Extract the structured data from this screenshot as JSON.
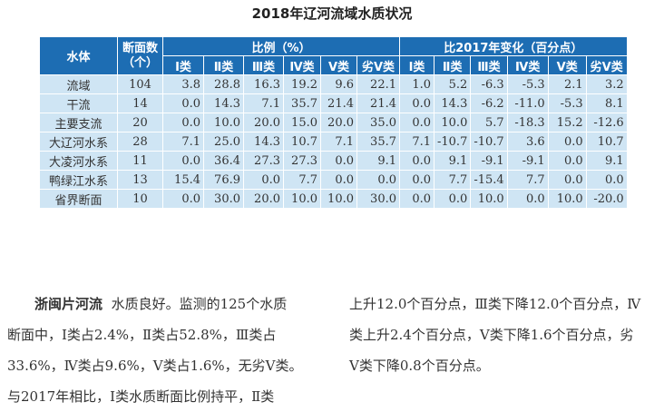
{
  "title": "2018年辽河流域水质状况",
  "table": {
    "col_water": "水体",
    "col_count": "断面数（个）",
    "group_ratio": "比例（%）",
    "group_change": "比2017年变化（百分点）",
    "classes": [
      "Ⅰ类",
      "Ⅱ类",
      "Ⅲ类",
      "Ⅳ类",
      "Ⅴ类",
      "劣Ⅴ类"
    ],
    "rows": [
      {
        "name": "流域",
        "count": "104",
        "ratio": [
          "3.8",
          "28.8",
          "16.3",
          "19.2",
          "9.6",
          "22.1"
        ],
        "change": [
          "1.0",
          "5.2",
          "-6.3",
          "-5.3",
          "2.1",
          "3.2"
        ]
      },
      {
        "name": "干流",
        "count": "14",
        "ratio": [
          "0.0",
          "14.3",
          "7.1",
          "35.7",
          "21.4",
          "21.4"
        ],
        "change": [
          "0.0",
          "14.3",
          "-6.2",
          "-11.0",
          "-5.3",
          "8.1"
        ]
      },
      {
        "name": "主要支流",
        "count": "20",
        "ratio": [
          "0.0",
          "10.0",
          "20.0",
          "15.0",
          "20.0",
          "35.0"
        ],
        "change": [
          "0.0",
          "10.0",
          "5.7",
          "-18.3",
          "15.2",
          "-12.6"
        ]
      },
      {
        "name": "大辽河水系",
        "count": "28",
        "ratio": [
          "7.1",
          "25.0",
          "14.3",
          "10.7",
          "7.1",
          "35.7"
        ],
        "change": [
          "7.1",
          "-10.7",
          "-10.7",
          "3.6",
          "0.0",
          "10.7"
        ]
      },
      {
        "name": "大凌河水系",
        "count": "11",
        "ratio": [
          "0.0",
          "36.4",
          "27.3",
          "27.3",
          "0.0",
          "9.1"
        ],
        "change": [
          "0.0",
          "9.1",
          "-9.1",
          "-9.1",
          "0.0",
          "9.1"
        ]
      },
      {
        "name": "鸭绿江水系",
        "count": "13",
        "ratio": [
          "15.4",
          "76.9",
          "0.0",
          "7.7",
          "0.0",
          "0.0"
        ],
        "change": [
          "0.0",
          "7.7",
          "-15.4",
          "7.7",
          "0.0",
          "0.0"
        ]
      },
      {
        "name": "省界断面",
        "count": "10",
        "ratio": [
          "0.0",
          "30.0",
          "20.0",
          "10.0",
          "10.0",
          "30.0"
        ],
        "change": [
          "0.0",
          "0.0",
          "10.0",
          "0.0",
          "10.0",
          "-20.0"
        ]
      }
    ]
  },
  "paragraph": {
    "lead": "浙闽片河流",
    "left_lines": [
      "水质良好。监测的125个水质",
      "断面中，Ⅰ类占2.4%，Ⅱ类占52.8%，Ⅲ类占",
      "33.6%，Ⅳ类占9.6%，Ⅴ类占1.6%，无劣Ⅴ类。",
      "与2017年相比，Ⅰ类水质断面比例持平，Ⅱ类"
    ],
    "right_lines": [
      "上升12.0个百分点，Ⅲ类下降12.0个百分点，Ⅳ",
      "类上升2.4个百分点，Ⅴ类下降1.6个百分点，劣",
      "Ⅴ类下降0.8个百分点。"
    ]
  }
}
